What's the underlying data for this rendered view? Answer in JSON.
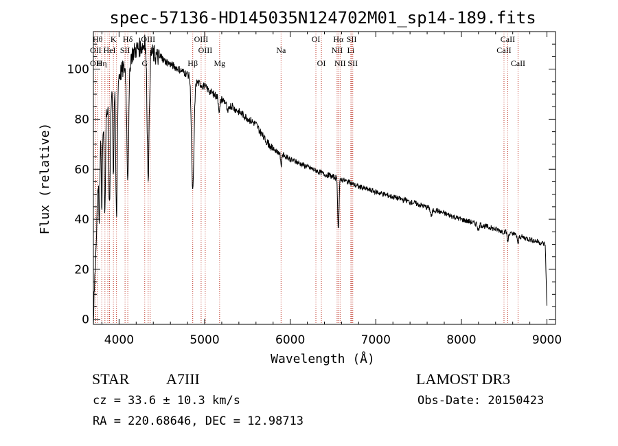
{
  "chart_data": {
    "type": "line",
    "title": "spec-57136-HD145035N124702M01_sp14-189.fits",
    "xlabel": "Wavelength (Å)",
    "ylabel": "Flux (relative)",
    "xlim": [
      3700,
      9100
    ],
    "ylim": [
      -2,
      115
    ],
    "x_ticks": [
      4000,
      5000,
      6000,
      7000,
      8000,
      9000
    ],
    "y_ticks": [
      0,
      20,
      40,
      60,
      80,
      100
    ],
    "x_tick_labels": [
      "4000",
      "5000",
      "6000",
      "7000",
      "8000",
      "9000"
    ],
    "y_tick_labels": [
      "0",
      "20",
      "40",
      "60",
      "80",
      "100"
    ],
    "grid": false,
    "series": [
      {
        "name": "spectrum",
        "continuum_x": [
          3700,
          3720,
          3750,
          3780,
          3820,
          3860,
          3900,
          3950,
          4000,
          4050,
          4100,
          4150,
          4200,
          4250,
          4300,
          4350,
          4400,
          4500,
          4600,
          4700,
          4800,
          4900,
          5000,
          5100,
          5200,
          5400,
          5600,
          5700,
          5800,
          6000,
          6200,
          6400,
          6600,
          6800,
          7000,
          7500,
          8000,
          8500,
          8700,
          8900,
          8980,
          9000
        ],
        "continuum_y": [
          0,
          20,
          50,
          72,
          78,
          85,
          90,
          95,
          98,
          100,
          103,
          106,
          108,
          109,
          110,
          108,
          106,
          104,
          102,
          100,
          98,
          95,
          93,
          90,
          88,
          83,
          78,
          72,
          68,
          64,
          61,
          58,
          56,
          53,
          51,
          46,
          40,
          35,
          33,
          31,
          30,
          5
        ],
        "absorption_lines": [
          {
            "center": 3770,
            "depth": 25,
            "width": 6
          },
          {
            "center": 3798,
            "depth": 30,
            "width": 6
          },
          {
            "center": 3835,
            "depth": 38,
            "width": 7
          },
          {
            "center": 3889,
            "depth": 45,
            "width": 8
          },
          {
            "center": 3934,
            "depth": 35,
            "width": 6
          },
          {
            "center": 3970,
            "depth": 55,
            "width": 9
          },
          {
            "center": 4102,
            "depth": 45,
            "width": 12
          },
          {
            "center": 4340,
            "depth": 50,
            "width": 12
          },
          {
            "center": 4861,
            "depth": 45,
            "width": 14
          },
          {
            "center": 5172,
            "depth": 5,
            "width": 10
          },
          {
            "center": 5270,
            "depth": 4,
            "width": 10
          },
          {
            "center": 5893,
            "depth": 5,
            "width": 6
          },
          {
            "center": 6563,
            "depth": 20,
            "width": 8
          },
          {
            "center": 7650,
            "depth": 3,
            "width": 10
          },
          {
            "center": 8200,
            "depth": 3,
            "width": 8
          },
          {
            "center": 8542,
            "depth": 4,
            "width": 6
          },
          {
            "center": 8662,
            "depth": 4,
            "width": 6
          }
        ]
      }
    ],
    "line_markers": [
      {
        "wavelength": 3750,
        "label": "Hθ",
        "row": 0
      },
      {
        "wavelength": 3727,
        "label": "OII",
        "row": 1
      },
      {
        "wavelength": 3727,
        "label": "OII",
        "row": 2
      },
      {
        "wavelength": 3798,
        "label": "Hη",
        "row": 2
      },
      {
        "wavelength": 3835,
        "label": "",
        "row": 0
      },
      {
        "wavelength": 3869,
        "label": "",
        "row": 0
      },
      {
        "wavelength": 3889,
        "label": "HeI",
        "row": 1
      },
      {
        "wavelength": 3934,
        "label": "K",
        "row": 0
      },
      {
        "wavelength": 3970,
        "label": "",
        "row": 0
      },
      {
        "wavelength": 4070,
        "label": "SII",
        "row": 1
      },
      {
        "wavelength": 4102,
        "label": "Hδ",
        "row": 0
      },
      {
        "wavelength": 4300,
        "label": "G",
        "row": 2
      },
      {
        "wavelength": 4340,
        "label": "OIII",
        "row": 0
      },
      {
        "wavelength": 4363,
        "label": "",
        "row": 0
      },
      {
        "wavelength": 4861,
        "label": "Hβ",
        "row": 2
      },
      {
        "wavelength": 4959,
        "label": "OIII",
        "row": 0
      },
      {
        "wavelength": 5007,
        "label": "OIII",
        "row": 1
      },
      {
        "wavelength": 5175,
        "label": "Mg",
        "row": 2
      },
      {
        "wavelength": 5893,
        "label": "Na",
        "row": 1
      },
      {
        "wavelength": 6300,
        "label": "OI",
        "row": 0
      },
      {
        "wavelength": 6364,
        "label": "OI",
        "row": 2
      },
      {
        "wavelength": 6548,
        "label": "NII",
        "row": 1
      },
      {
        "wavelength": 6563,
        "label": "Hα",
        "row": 0
      },
      {
        "wavelength": 6583,
        "label": "NII",
        "row": 2
      },
      {
        "wavelength": 6708,
        "label": "Li",
        "row": 1
      },
      {
        "wavelength": 6717,
        "label": "SII",
        "row": 0
      },
      {
        "wavelength": 6731,
        "label": "SII",
        "row": 2
      },
      {
        "wavelength": 8498,
        "label": "CaII",
        "row": 1
      },
      {
        "wavelength": 8542,
        "label": "CaII",
        "row": 0
      },
      {
        "wavelength": 8662,
        "label": "CaII",
        "row": 2
      }
    ]
  },
  "info": {
    "object_type": "STAR",
    "spectral_class": "A7III",
    "survey": "LAMOST DR3",
    "redshift": "cz = 33.6 ± 10.3 km/s",
    "obs_date": "Obs-Date: 20150423",
    "coordinates": "RA = 220.68646, DEC =  12.98713"
  }
}
